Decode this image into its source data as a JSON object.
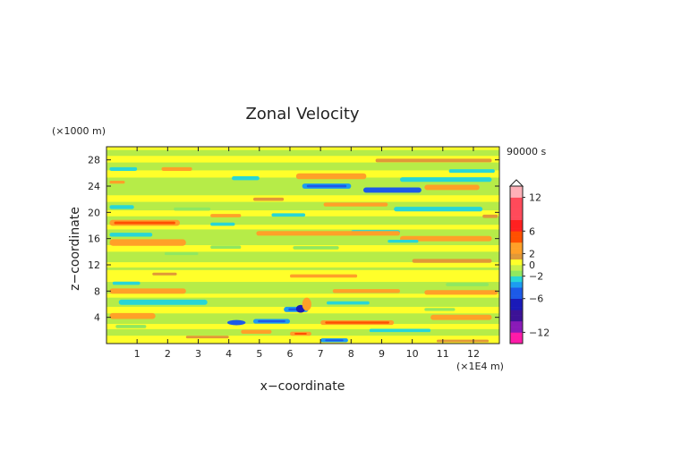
{
  "chart_data": {
    "type": "heatmap",
    "title": "Zonal Velocity",
    "xlabel": "x−coordinate",
    "ylabel": "z−coordinate",
    "x_unit": "(×1E4 m)",
    "y_unit": "(×1000 m)",
    "time_label": "90000 s",
    "xlim": [
      0,
      12.85
    ],
    "ylim": [
      0,
      30
    ],
    "x_ticks": [
      1,
      2,
      3,
      4,
      5,
      6,
      7,
      8,
      9,
      10,
      11,
      12
    ],
    "y_ticks": [
      4,
      8,
      12,
      16,
      20,
      24,
      28
    ],
    "colorbar": {
      "ticks": [
        12,
        6,
        2,
        0,
        -2,
        -6,
        -12
      ],
      "tick_labels": [
        "12",
        "6",
        "2",
        "0",
        "−2",
        "−6",
        "−12"
      ],
      "range": [
        -14,
        14
      ]
    },
    "bands": [
      {
        "z": 27.9,
        "x0": 8.8,
        "x1": 12.6,
        "v": 1.5,
        "th": 0.55
      },
      {
        "z": 26.6,
        "x0": 0.1,
        "x1": 1.0,
        "v": -2.5,
        "th": 0.55
      },
      {
        "z": 26.6,
        "x0": 1.8,
        "x1": 2.8,
        "v": 2.0,
        "th": 0.55
      },
      {
        "z": 26.3,
        "x0": 11.2,
        "x1": 12.7,
        "v": -2.0,
        "th": 0.55
      },
      {
        "z": 25.5,
        "x0": 6.2,
        "x1": 8.5,
        "v": 2.5,
        "th": 0.9
      },
      {
        "z": 25.2,
        "x0": 4.1,
        "x1": 5.0,
        "v": -2.5,
        "th": 0.6
      },
      {
        "z": 25.0,
        "x0": 9.6,
        "x1": 12.6,
        "v": -2.2,
        "th": 0.7
      },
      {
        "z": 24.6,
        "x0": 0.1,
        "x1": 0.6,
        "v": 2.0,
        "th": 0.45
      },
      {
        "z": 24.0,
        "x0": 6.4,
        "x1": 8.0,
        "v": -3.5,
        "th": 0.8
      },
      {
        "z": 23.8,
        "x0": 10.4,
        "x1": 12.2,
        "v": 2.5,
        "th": 0.8
      },
      {
        "z": 23.4,
        "x0": 8.4,
        "x1": 10.3,
        "v": -4.0,
        "th": 0.8
      },
      {
        "z": 22.0,
        "x0": 4.8,
        "x1": 5.8,
        "v": 1.5,
        "th": 0.5
      },
      {
        "z": 21.2,
        "x0": 7.1,
        "x1": 9.2,
        "v": 2.0,
        "th": 0.6
      },
      {
        "z": 20.8,
        "x0": 0.1,
        "x1": 0.9,
        "v": -2.2,
        "th": 0.6
      },
      {
        "z": 20.5,
        "x0": 2.2,
        "x1": 3.4,
        "v": -1.6,
        "th": 0.5
      },
      {
        "z": 20.5,
        "x0": 9.4,
        "x1": 12.3,
        "v": -2.0,
        "th": 0.7
      },
      {
        "z": 19.6,
        "x0": 5.4,
        "x1": 6.5,
        "v": -2.5,
        "th": 0.5
      },
      {
        "z": 19.5,
        "x0": 3.4,
        "x1": 4.4,
        "v": 2.0,
        "th": 0.5
      },
      {
        "z": 19.4,
        "x0": 12.3,
        "x1": 12.8,
        "v": 1.8,
        "th": 0.5
      },
      {
        "z": 18.4,
        "x0": 0.1,
        "x1": 2.4,
        "v": 3.0,
        "th": 0.9
      },
      {
        "z": 18.2,
        "x0": 3.4,
        "x1": 4.2,
        "v": -2.0,
        "th": 0.5
      },
      {
        "z": 17.0,
        "x0": 8.0,
        "x1": 9.6,
        "v": -2.0,
        "th": 0.6
      },
      {
        "z": 16.8,
        "x0": 4.9,
        "x1": 9.6,
        "v": 2.0,
        "th": 0.7
      },
      {
        "z": 16.6,
        "x0": 0.1,
        "x1": 1.5,
        "v": -2.0,
        "th": 0.6
      },
      {
        "z": 16.0,
        "x0": 9.6,
        "x1": 12.6,
        "v": 2.5,
        "th": 0.8
      },
      {
        "z": 15.6,
        "x0": 9.2,
        "x1": 10.2,
        "v": -2.5,
        "th": 0.45
      },
      {
        "z": 15.4,
        "x0": 0.1,
        "x1": 2.6,
        "v": 2.5,
        "th": 1.0
      },
      {
        "z": 14.7,
        "x0": 3.4,
        "x1": 4.4,
        "v": -1.8,
        "th": 0.5
      },
      {
        "z": 14.6,
        "x0": 6.1,
        "x1": 7.6,
        "v": -1.5,
        "th": 0.5
      },
      {
        "z": 13.7,
        "x0": 1.9,
        "x1": 3.0,
        "v": -1.6,
        "th": 0.45
      },
      {
        "z": 12.6,
        "x0": 10.0,
        "x1": 12.6,
        "v": 1.0,
        "th": 0.6
      },
      {
        "z": 10.6,
        "x0": 1.5,
        "x1": 2.3,
        "v": 1.5,
        "th": 0.4
      },
      {
        "z": 10.3,
        "x0": 6.0,
        "x1": 8.2,
        "v": 2.0,
        "th": 0.5
      },
      {
        "z": 9.2,
        "x0": 0.2,
        "x1": 1.1,
        "v": -2.0,
        "th": 0.5
      },
      {
        "z": 9.0,
        "x0": 11.1,
        "x1": 12.5,
        "v": -1.8,
        "th": 0.5
      },
      {
        "z": 8.0,
        "x0": 0.1,
        "x1": 2.6,
        "v": 2.0,
        "th": 0.8
      },
      {
        "z": 8.0,
        "x0": 7.4,
        "x1": 9.6,
        "v": 2.0,
        "th": 0.6
      },
      {
        "z": 7.8,
        "x0": 10.4,
        "x1": 12.8,
        "v": 2.5,
        "th": 0.7
      },
      {
        "z": 6.3,
        "x0": 0.4,
        "x1": 3.3,
        "v": -2.8,
        "th": 0.8
      },
      {
        "z": 6.2,
        "x0": 7.2,
        "x1": 8.6,
        "v": -2.0,
        "th": 0.5
      },
      {
        "z": 5.2,
        "x0": 5.8,
        "x1": 6.6,
        "v": -3.0,
        "th": 0.8
      },
      {
        "z": 5.2,
        "x0": 10.4,
        "x1": 11.4,
        "v": -1.8,
        "th": 0.45
      },
      {
        "z": 4.2,
        "x0": 0.1,
        "x1": 1.6,
        "v": 2.5,
        "th": 0.9
      },
      {
        "z": 4.0,
        "x0": 10.6,
        "x1": 12.6,
        "v": 2.5,
        "th": 0.8
      },
      {
        "z": 3.4,
        "x0": 4.8,
        "x1": 6.0,
        "v": -3.0,
        "th": 0.7
      },
      {
        "z": 3.2,
        "x0": 7.0,
        "x1": 9.4,
        "v": 3.0,
        "th": 0.7
      },
      {
        "z": 2.6,
        "x0": 0.3,
        "x1": 1.3,
        "v": -1.8,
        "th": 0.5
      },
      {
        "z": 2.0,
        "x0": 8.6,
        "x1": 10.6,
        "v": -2.0,
        "th": 0.5
      },
      {
        "z": 1.8,
        "x0": 4.4,
        "x1": 5.4,
        "v": 2.0,
        "th": 0.6
      },
      {
        "z": 1.5,
        "x0": 6.0,
        "x1": 6.7,
        "v": 3.0,
        "th": 0.6
      },
      {
        "z": 1.0,
        "x0": 2.6,
        "x1": 4.0,
        "v": 1.5,
        "th": 0.4
      },
      {
        "z": 0.5,
        "x0": 7.0,
        "x1": 7.9,
        "v": -3.0,
        "th": 0.6
      },
      {
        "z": 0.4,
        "x0": 10.8,
        "x1": 12.5,
        "v": 1.5,
        "th": 0.4
      }
    ],
    "blobs": [
      {
        "x": 6.35,
        "z": 5.3,
        "v": -7.0,
        "rx": 0.15,
        "rz": 0.6
      },
      {
        "x": 6.55,
        "z": 6.0,
        "v": 3.5,
        "rx": 0.15,
        "rz": 1.0
      },
      {
        "x": 4.25,
        "z": 3.2,
        "v": -4.0,
        "rx": 0.3,
        "rz": 0.4
      }
    ]
  }
}
